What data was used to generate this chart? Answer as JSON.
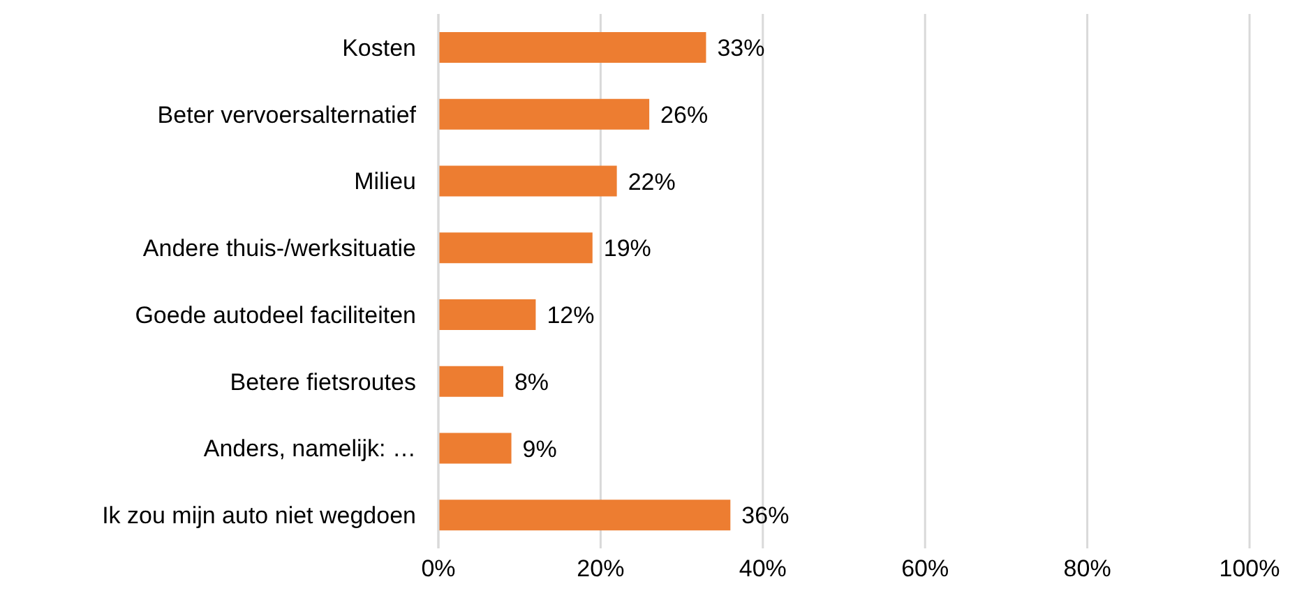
{
  "chart_data": {
    "type": "bar",
    "orientation": "horizontal",
    "categories": [
      "Kosten",
      "Beter vervoersalternatief",
      "Milieu",
      "Andere thuis-/werksituatie",
      "Goede autodeel faciliteiten",
      "Betere fietsroutes",
      "Anders, namelijk: …",
      "Ik zou mijn auto niet wegdoen"
    ],
    "values": [
      33,
      26,
      22,
      19,
      12,
      8,
      9,
      36
    ],
    "value_labels": [
      "33%",
      "26%",
      "22%",
      "19%",
      "12%",
      "8%",
      "9%",
      "36%"
    ],
    "color": "#ed7d31",
    "xlim": [
      0,
      100
    ],
    "xticks": [
      {
        "value": 0,
        "label": "0%"
      },
      {
        "value": 20,
        "label": "20%"
      },
      {
        "value": 40,
        "label": "40%"
      },
      {
        "value": 60,
        "label": "60%"
      },
      {
        "value": 80,
        "label": "80%"
      },
      {
        "value": 100,
        "label": "100%"
      }
    ],
    "grid": "x",
    "legend": false
  }
}
